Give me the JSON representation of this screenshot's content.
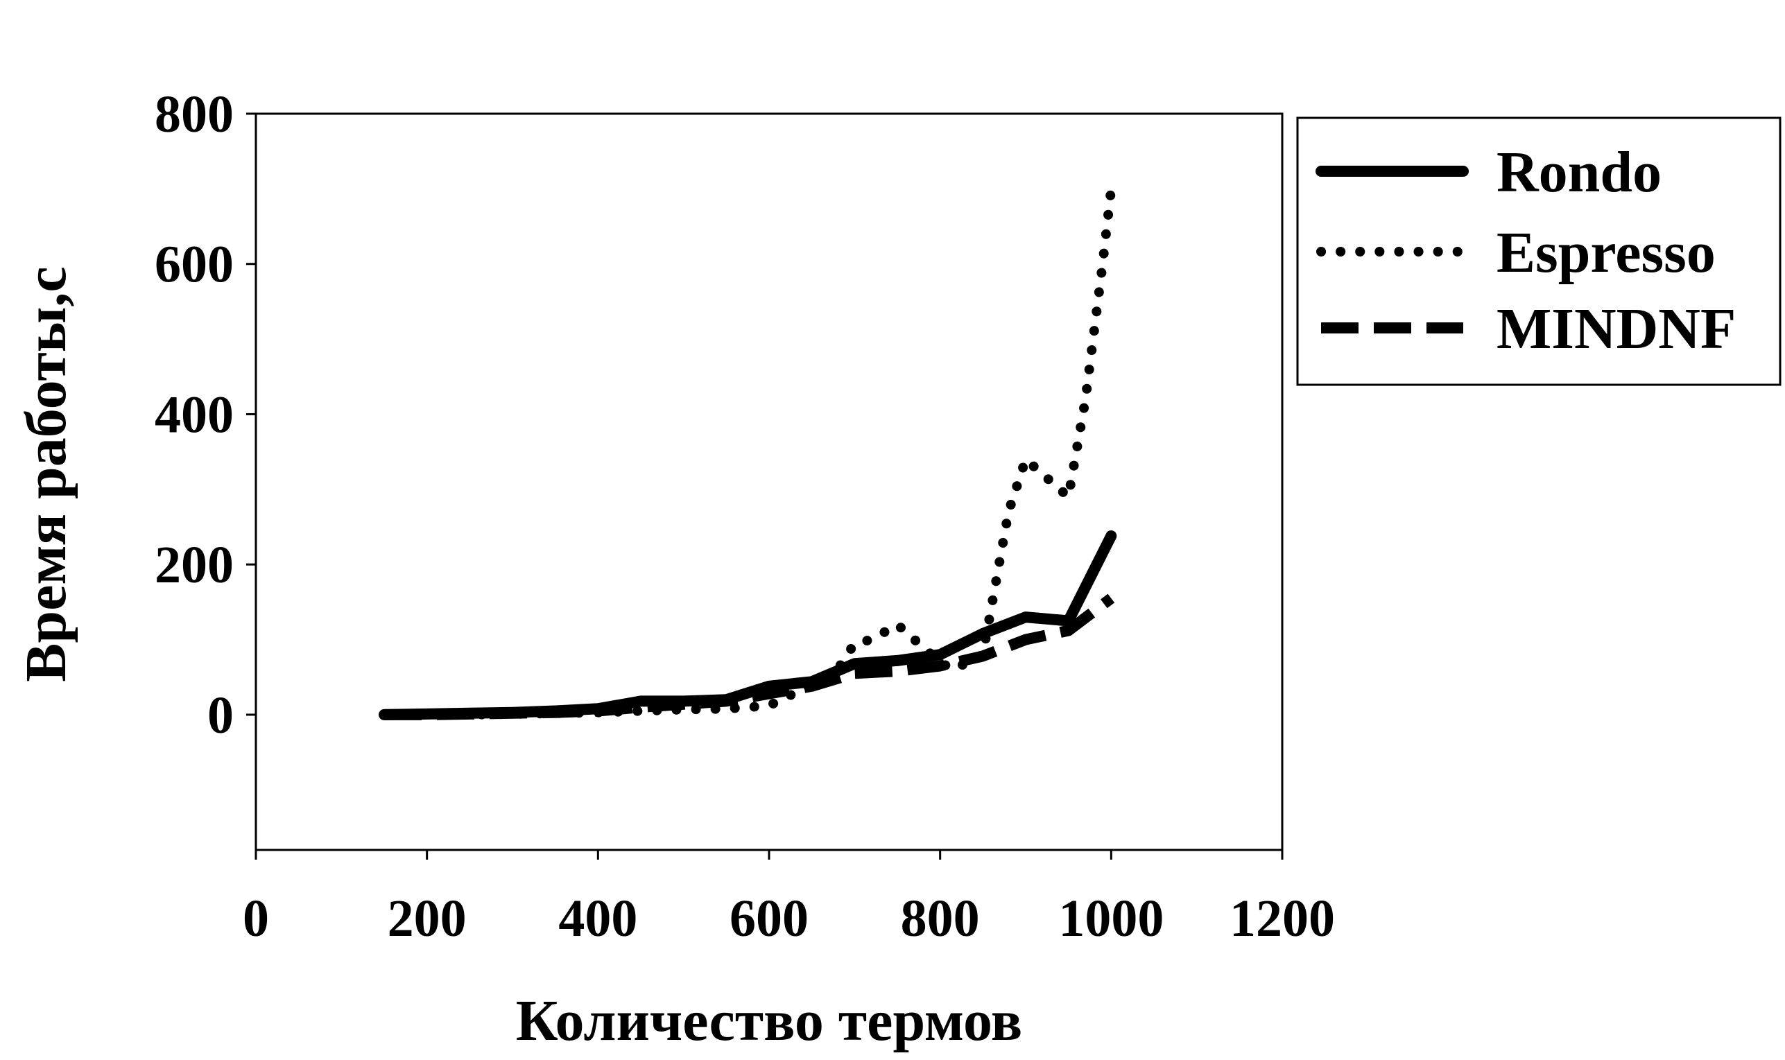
{
  "chart_data": {
    "type": "line",
    "title": "",
    "xlabel": "Количество термов",
    "ylabel": "Время работы,с",
    "xlim": [
      0,
      1200
    ],
    "ylim": [
      -180,
      800
    ],
    "xticks": [
      0,
      200,
      400,
      600,
      800,
      1000,
      1200
    ],
    "yticks": [
      0,
      200,
      400,
      600,
      800
    ],
    "grid": false,
    "legend_position": "right",
    "series": [
      {
        "name": "Rondo",
        "style": "solid",
        "color": "#000000",
        "x": [
          150,
          200,
          250,
          300,
          350,
          400,
          450,
          500,
          550,
          600,
          650,
          700,
          750,
          800,
          850,
          900,
          950,
          1000
        ],
        "y": [
          0,
          1,
          2,
          3,
          5,
          8,
          18,
          18,
          20,
          38,
          44,
          68,
          72,
          80,
          108,
          130,
          125,
          238
        ]
      },
      {
        "name": "Espresso",
        "style": "dotted",
        "color": "#000000",
        "x": [
          150,
          200,
          250,
          300,
          350,
          400,
          450,
          500,
          550,
          600,
          650,
          680,
          700,
          720,
          750,
          775,
          800,
          815,
          850,
          880,
          900,
          930,
          950,
          970,
          990,
          1000
        ],
        "y": [
          0,
          0,
          0,
          1,
          2,
          3,
          5,
          7,
          8,
          12,
          40,
          60,
          95,
          100,
          120,
          95,
          70,
          60,
          80,
          270,
          340,
          310,
          290,
          420,
          600,
          700
        ]
      },
      {
        "name": "MINDNF",
        "style": "dashed",
        "color": "#000000",
        "x": [
          150,
          200,
          250,
          300,
          350,
          400,
          450,
          500,
          550,
          600,
          650,
          700,
          750,
          800,
          850,
          900,
          950,
          1000
        ],
        "y": [
          0,
          0,
          1,
          2,
          3,
          5,
          10,
          14,
          18,
          28,
          38,
          55,
          58,
          65,
          78,
          100,
          112,
          155
        ]
      }
    ]
  }
}
